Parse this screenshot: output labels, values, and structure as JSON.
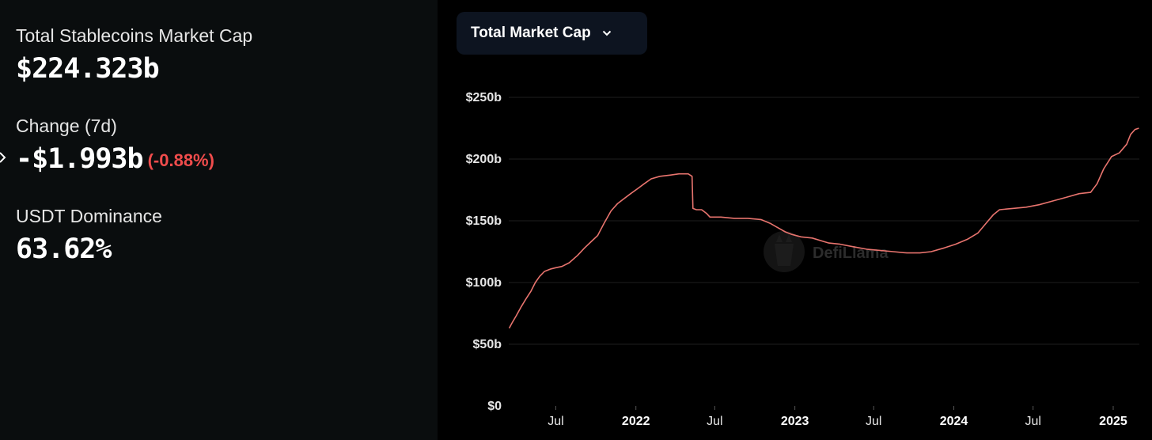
{
  "stats": {
    "market_cap_label": "Total Stablecoins Market Cap",
    "market_cap_value": "$224.323b",
    "change_label": "Change (7d)",
    "change_value": "-$1.993b",
    "change_pct": "(-0.88%)",
    "dominance_label": "USDT Dominance",
    "dominance_value": "63.62%"
  },
  "dropdown": {
    "label": "Total Market Cap",
    "icon": "chevron-down-icon"
  },
  "watermark": {
    "text": "DefiLlama"
  },
  "colors": {
    "negative": "#f04c4c",
    "line": "#e8746e",
    "panel_bg": "#0a0d0e",
    "chart_bg": "#000000",
    "dropdown_bg": "#0d1420"
  },
  "chart_data": {
    "type": "line",
    "title": "",
    "xlabel": "",
    "ylabel": "",
    "x_range": [
      "2021-03-15",
      "2025-03-02"
    ],
    "ylim": [
      0,
      250
    ],
    "y_unit": "billion USD",
    "y_ticks": [
      {
        "value": 0,
        "label": "$0"
      },
      {
        "value": 50,
        "label": "$50b"
      },
      {
        "value": 100,
        "label": "$100b"
      },
      {
        "value": 150,
        "label": "$150b"
      },
      {
        "value": 200,
        "label": "$200b"
      },
      {
        "value": 250,
        "label": "$250b"
      }
    ],
    "x_ticks": [
      {
        "date": "2021-07-01",
        "label": "Jul",
        "year": false
      },
      {
        "date": "2022-01-01",
        "label": "2022",
        "year": true
      },
      {
        "date": "2022-07-01",
        "label": "Jul",
        "year": false
      },
      {
        "date": "2023-01-01",
        "label": "2023",
        "year": true
      },
      {
        "date": "2023-07-01",
        "label": "Jul",
        "year": false
      },
      {
        "date": "2024-01-01",
        "label": "2024",
        "year": true
      },
      {
        "date": "2024-07-01",
        "label": "Jul",
        "year": false
      },
      {
        "date": "2025-01-01",
        "label": "2025",
        "year": true
      }
    ],
    "grid": true,
    "legend": "none",
    "series": [
      {
        "color": "#e8746e",
        "points": [
          [
            "2021-03-16",
            63
          ],
          [
            "2021-03-22",
            67
          ],
          [
            "2021-04-01",
            73
          ],
          [
            "2021-04-12",
            80
          ],
          [
            "2021-04-24",
            87
          ],
          [
            "2021-05-05",
            93
          ],
          [
            "2021-05-15",
            100
          ],
          [
            "2021-05-25",
            105
          ],
          [
            "2021-06-05",
            109
          ],
          [
            "2021-06-20",
            111
          ],
          [
            "2021-07-01",
            112
          ],
          [
            "2021-07-15",
            113
          ],
          [
            "2021-08-01",
            116
          ],
          [
            "2021-08-20",
            122
          ],
          [
            "2021-09-05",
            128
          ],
          [
            "2021-09-20",
            133
          ],
          [
            "2021-10-05",
            138
          ],
          [
            "2021-10-20",
            148
          ],
          [
            "2021-11-05",
            158
          ],
          [
            "2021-11-20",
            164
          ],
          [
            "2021-12-05",
            168
          ],
          [
            "2021-12-20",
            172
          ],
          [
            "2022-01-05",
            176
          ],
          [
            "2022-01-20",
            180
          ],
          [
            "2022-02-05",
            184
          ],
          [
            "2022-02-25",
            186
          ],
          [
            "2022-03-20",
            187
          ],
          [
            "2022-04-10",
            188
          ],
          [
            "2022-05-01",
            188
          ],
          [
            "2022-05-10",
            186
          ],
          [
            "2022-05-12",
            160
          ],
          [
            "2022-05-20",
            159
          ],
          [
            "2022-06-01",
            159
          ],
          [
            "2022-06-12",
            156
          ],
          [
            "2022-06-20",
            153
          ],
          [
            "2022-07-15",
            153
          ],
          [
            "2022-08-15",
            152
          ],
          [
            "2022-09-15",
            152
          ],
          [
            "2022-10-15",
            151
          ],
          [
            "2022-11-05",
            148
          ],
          [
            "2022-11-20",
            145
          ],
          [
            "2022-12-10",
            141
          ],
          [
            "2022-12-25",
            139
          ],
          [
            "2023-01-15",
            137
          ],
          [
            "2023-02-10",
            136
          ],
          [
            "2023-03-10",
            133
          ],
          [
            "2023-03-20",
            132
          ],
          [
            "2023-04-15",
            131
          ],
          [
            "2023-05-15",
            129
          ],
          [
            "2023-06-15",
            127
          ],
          [
            "2023-07-15",
            126
          ],
          [
            "2023-08-15",
            125
          ],
          [
            "2023-09-15",
            124
          ],
          [
            "2023-10-15",
            124
          ],
          [
            "2023-11-10",
            125
          ],
          [
            "2023-12-10",
            128
          ],
          [
            "2024-01-05",
            131
          ],
          [
            "2024-02-01",
            135
          ],
          [
            "2024-02-25",
            140
          ],
          [
            "2024-03-15",
            148
          ],
          [
            "2024-04-01",
            155
          ],
          [
            "2024-04-15",
            159
          ],
          [
            "2024-05-15",
            160
          ],
          [
            "2024-06-15",
            161
          ],
          [
            "2024-07-15",
            163
          ],
          [
            "2024-08-15",
            166
          ],
          [
            "2024-09-15",
            169
          ],
          [
            "2024-10-15",
            172
          ],
          [
            "2024-11-10",
            173
          ],
          [
            "2024-11-25",
            180
          ],
          [
            "2024-12-10",
            192
          ],
          [
            "2024-12-28",
            202
          ],
          [
            "2025-01-15",
            205
          ],
          [
            "2025-02-01",
            212
          ],
          [
            "2025-02-10",
            220
          ],
          [
            "2025-02-20",
            224
          ],
          [
            "2025-03-01",
            225
          ]
        ]
      }
    ]
  }
}
